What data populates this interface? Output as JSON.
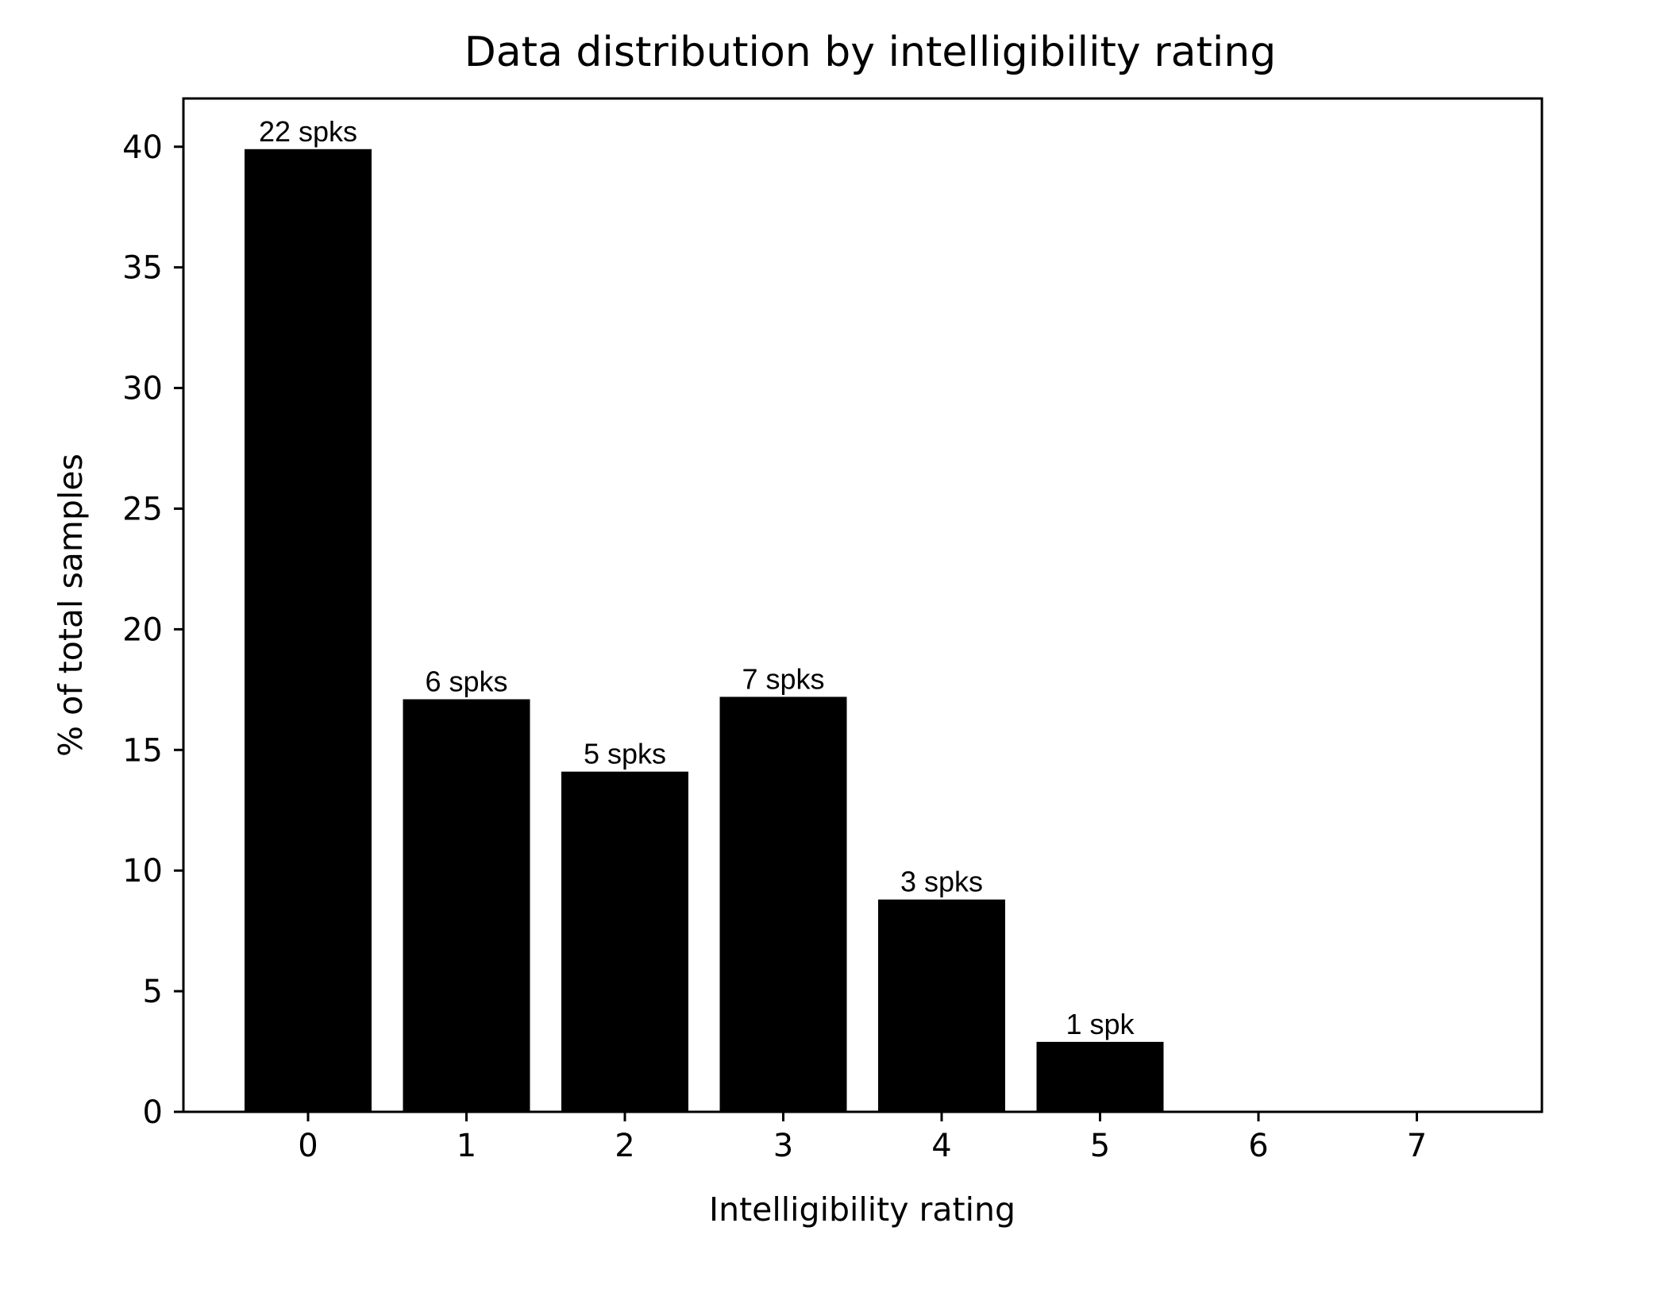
{
  "chart_data": {
    "type": "bar",
    "title": "Data distribution by intelligibility rating",
    "xlabel": "Intelligibility rating",
    "ylabel": "% of total samples",
    "categories": [
      "0",
      "1",
      "2",
      "3",
      "4",
      "5",
      "6",
      "7"
    ],
    "values": [
      39.9,
      17.1,
      14.1,
      17.2,
      8.8,
      2.9,
      0,
      0
    ],
    "bar_labels": [
      "22 spks",
      "6 spks",
      "5 spks",
      "7 spks",
      "3 spks",
      "1 spk",
      "",
      ""
    ],
    "ylim": [
      0,
      42
    ],
    "yticks": [
      0,
      5,
      10,
      15,
      20,
      25,
      30,
      35,
      40
    ],
    "grid": false,
    "bar_color": "#000000"
  }
}
